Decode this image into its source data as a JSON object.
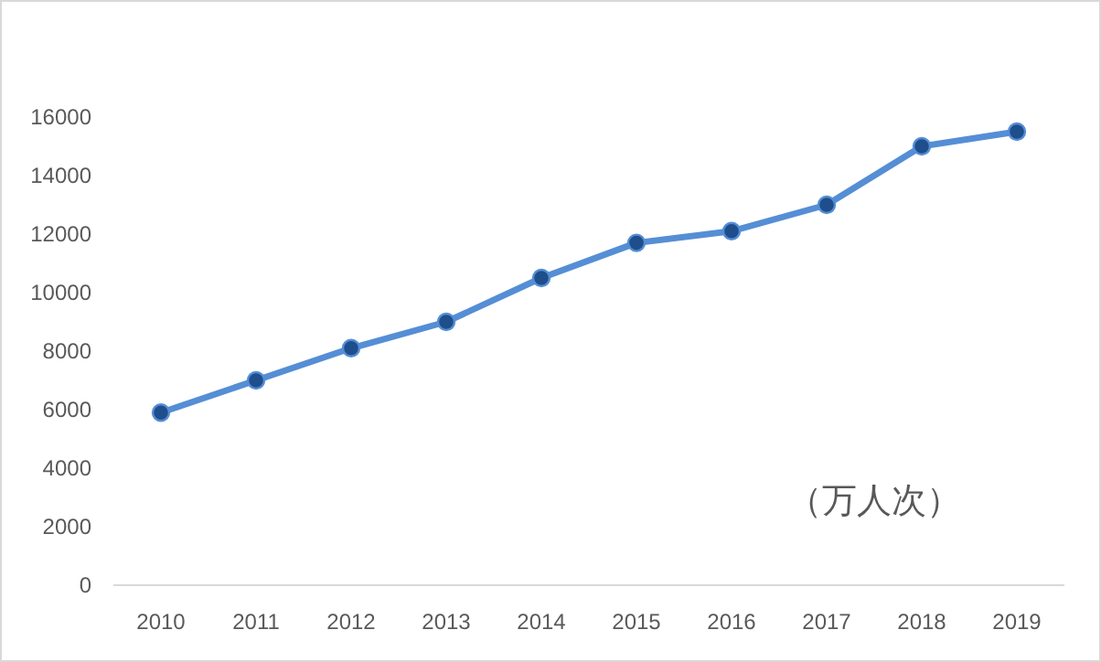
{
  "chart_data": {
    "type": "line",
    "categories": [
      "2010",
      "2011",
      "2012",
      "2013",
      "2014",
      "2015",
      "2016",
      "2017",
      "2018",
      "2019"
    ],
    "series": [
      {
        "color": "#558ed5",
        "values": [
          5900,
          7000,
          8100,
          9000,
          10500,
          11700,
          12100,
          13000,
          15000,
          15500
        ]
      }
    ],
    "ylim": [
      0,
      16000
    ],
    "yticks": [
      0,
      2000,
      4000,
      6000,
      8000,
      10000,
      12000,
      14000,
      16000
    ],
    "marker": "circle",
    "line_style": "solid",
    "grid": false,
    "annotations": [
      "（万人次）"
    ]
  }
}
